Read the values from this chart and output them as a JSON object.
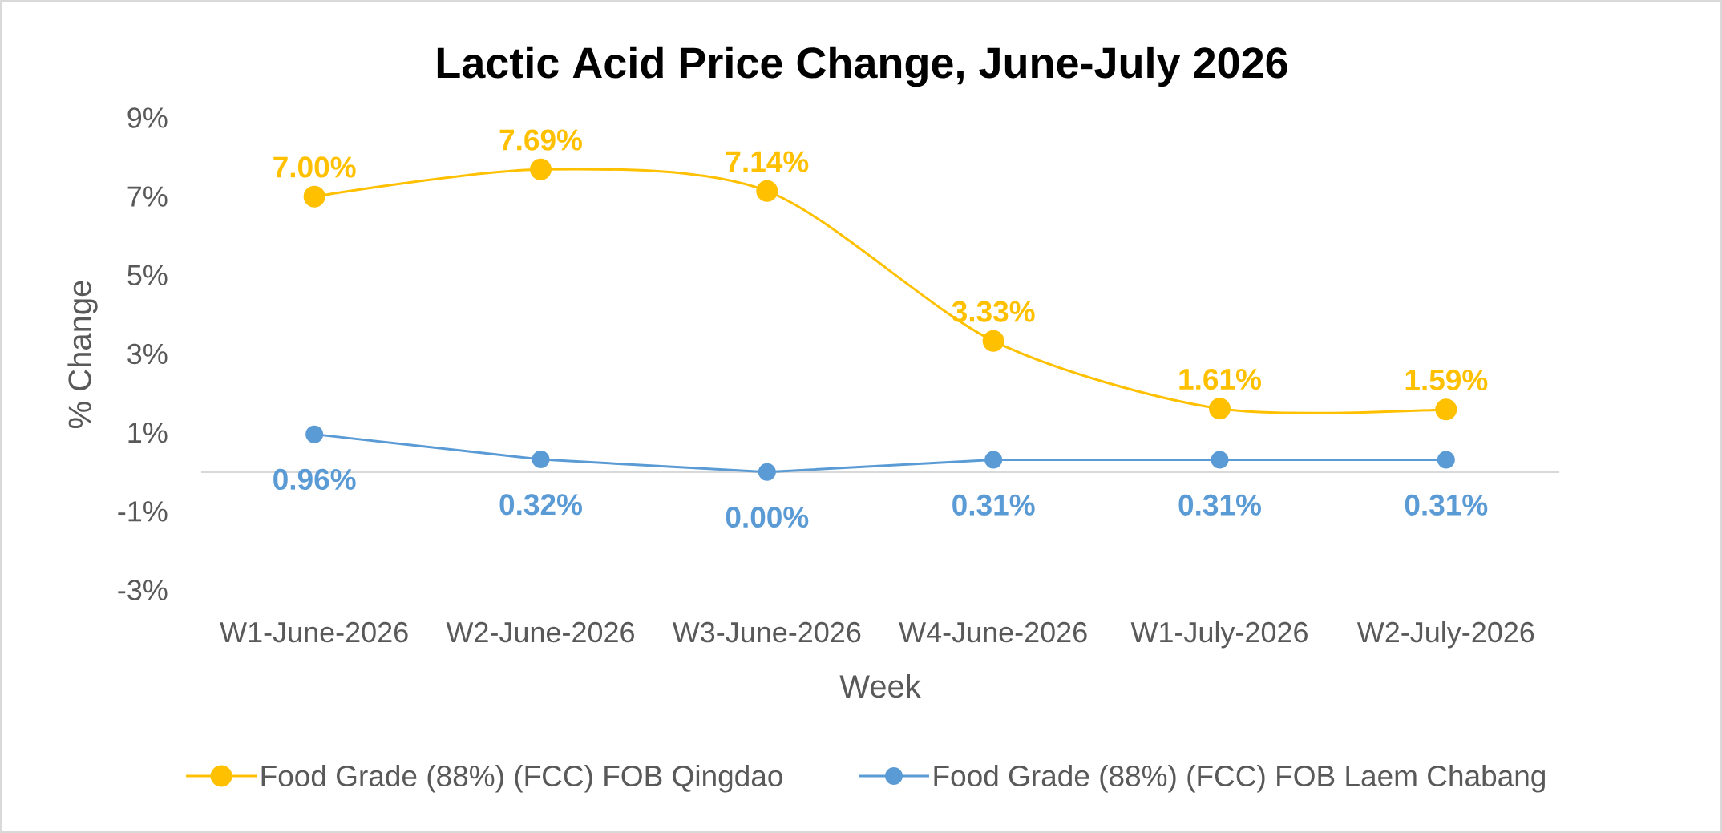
{
  "chart_data": {
    "type": "line",
    "title": "Lactic Acid Price Change, June-July 2026",
    "xlabel": "Week",
    "ylabel": "% Change",
    "categories": [
      "W1-June-2026",
      "W2-June-2026",
      "W3-June-2026",
      "W4-June-2026",
      "W1-July-2026",
      "W2-July-2026"
    ],
    "series": [
      {
        "name": "Food Grade (88%) (FCC) FOB Qingdao",
        "color": "#ffc000",
        "values": [
          7.0,
          7.69,
          7.14,
          3.33,
          1.61,
          1.59
        ],
        "value_labels": [
          "7.00%",
          "7.69%",
          "7.14%",
          "3.33%",
          "1.61%",
          "1.59%"
        ]
      },
      {
        "name": "Food Grade (88%) (FCC) FOB Laem Chabang",
        "color": "#5b9bd5",
        "values": [
          0.96,
          0.32,
          0.0,
          0.31,
          0.31,
          0.31
        ],
        "value_labels": [
          "0.96%",
          "0.32%",
          "0.00%",
          "0.31%",
          "0.31%",
          "0.31%"
        ]
      }
    ],
    "ylim": [
      -3,
      9
    ],
    "yticks": [
      {
        "value": -3,
        "label": "-3%"
      },
      {
        "value": -1,
        "label": "-1%"
      },
      {
        "value": 1,
        "label": "1%"
      },
      {
        "value": 3,
        "label": "3%"
      },
      {
        "value": 5,
        "label": "5%"
      },
      {
        "value": 7,
        "label": "7%"
      },
      {
        "value": 9,
        "label": "9%"
      }
    ],
    "legend": "bottom",
    "marker": "circle",
    "line_style": "solid"
  }
}
